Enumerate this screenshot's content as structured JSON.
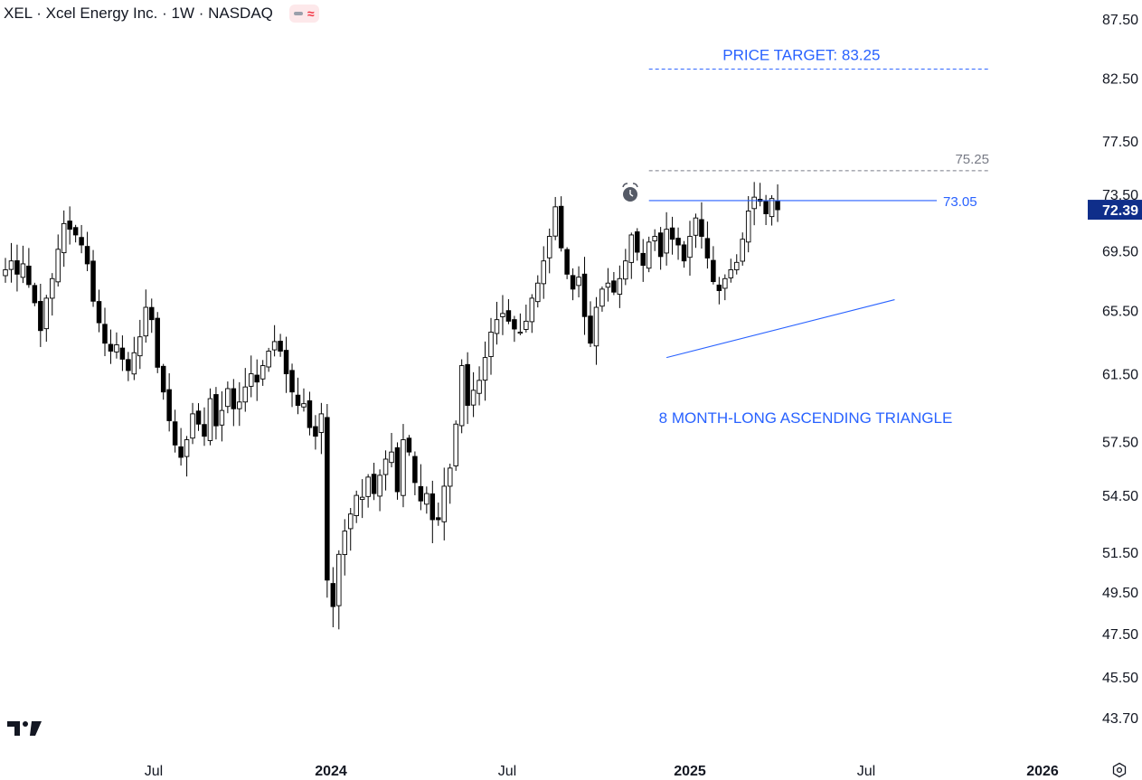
{
  "header": {
    "title": "XEL · Xcel Energy Inc. · 1W · NASDAQ",
    "icons": [
      "line-dash-icon",
      "wave-icon"
    ]
  },
  "colors": {
    "candle_up_fill": "#ffffff",
    "candle_down_fill": "#000000",
    "candle_outline": "#000000",
    "annotation": "#2962ff",
    "target_dashed": "#2962ff",
    "resistance_dashed": "#787b86",
    "last_price_bg": "#0f2e8a"
  },
  "chart_data": {
    "type": "candlestick",
    "symbol": "XEL",
    "interval": "1W",
    "exchange": "NASDAQ",
    "y_axis": {
      "ticks": [
        "87.50",
        "82.50",
        "77.50",
        "73.50",
        "69.50",
        "65.50",
        "61.50",
        "57.50",
        "54.50",
        "51.50",
        "49.50",
        "47.50",
        "45.50",
        "43.70"
      ],
      "log_scale": true,
      "range": [
        43.0,
        89.0
      ]
    },
    "x_axis": {
      "ticks": [
        "Jul",
        "2024",
        "Jul",
        "2025",
        "Jul",
        "2026"
      ]
    },
    "last_price": "72.39",
    "weekly_closes": [
      68.2,
      68.8,
      67.9,
      68.6,
      67.2,
      66.0,
      64.2,
      66.3,
      67.6,
      69.6,
      71.4,
      71.0,
      70.6,
      69.9,
      68.6,
      66.1,
      64.7,
      63.4,
      62.9,
      63.3,
      62.4,
      61.7,
      62.8,
      63.8,
      65.7,
      64.9,
      61.9,
      60.4,
      58.7,
      57.3,
      56.6,
      57.6,
      59.1,
      58.5,
      57.8,
      60.0,
      58.4,
      59.3,
      60.6,
      59.4,
      59.8,
      60.7,
      61.5,
      61.0,
      62.0,
      62.9,
      63.5,
      62.9,
      61.5,
      60.4,
      59.6,
      59.7,
      58.3,
      57.8,
      59.1,
      50.1,
      48.8,
      51.4,
      52.6,
      53.5,
      54.5,
      54.4,
      55.5,
      54.6,
      55.6,
      56.5,
      56.9,
      54.7,
      57.6,
      56.9,
      55.2,
      54.2,
      54.6,
      53.2,
      53.2,
      55.0,
      56.0,
      58.5,
      62.0,
      59.6,
      60.5,
      61.1,
      62.5,
      64.1,
      64.9,
      65.3,
      64.8,
      64.3,
      64.1,
      64.8,
      66.3,
      67.3,
      68.8,
      70.5,
      72.6,
      69.7,
      67.9,
      66.9,
      67.7,
      65.1,
      63.4,
      65.7,
      66.9,
      67.3,
      66.7,
      67.6,
      68.8,
      70.6,
      69.4,
      68.5,
      70.1,
      70.5,
      69.1,
      71.0,
      70.3,
      69.9,
      68.8,
      70.5,
      71.8,
      70.5,
      69.0,
      67.4,
      66.8,
      67.6,
      68.2,
      68.7,
      70.3,
      72.3,
      73.3,
      73.0,
      72.1,
      73.2,
      72.39
    ],
    "annotations": {
      "price_target": {
        "label": "PRICE TARGET: 83.25",
        "value": 83.25
      },
      "resistance_upper": {
        "label": "75.25",
        "value": 75.25
      },
      "resistance_lower": {
        "label": "73.05",
        "value": 73.05
      },
      "support_trendline": {
        "from": [
          62.5,
          "Dec 2024"
        ],
        "to": [
          66.2,
          "Jul 2025"
        ]
      },
      "pattern_label": "8 MONTH-LONG ASCENDING TRIANGLE"
    }
  }
}
